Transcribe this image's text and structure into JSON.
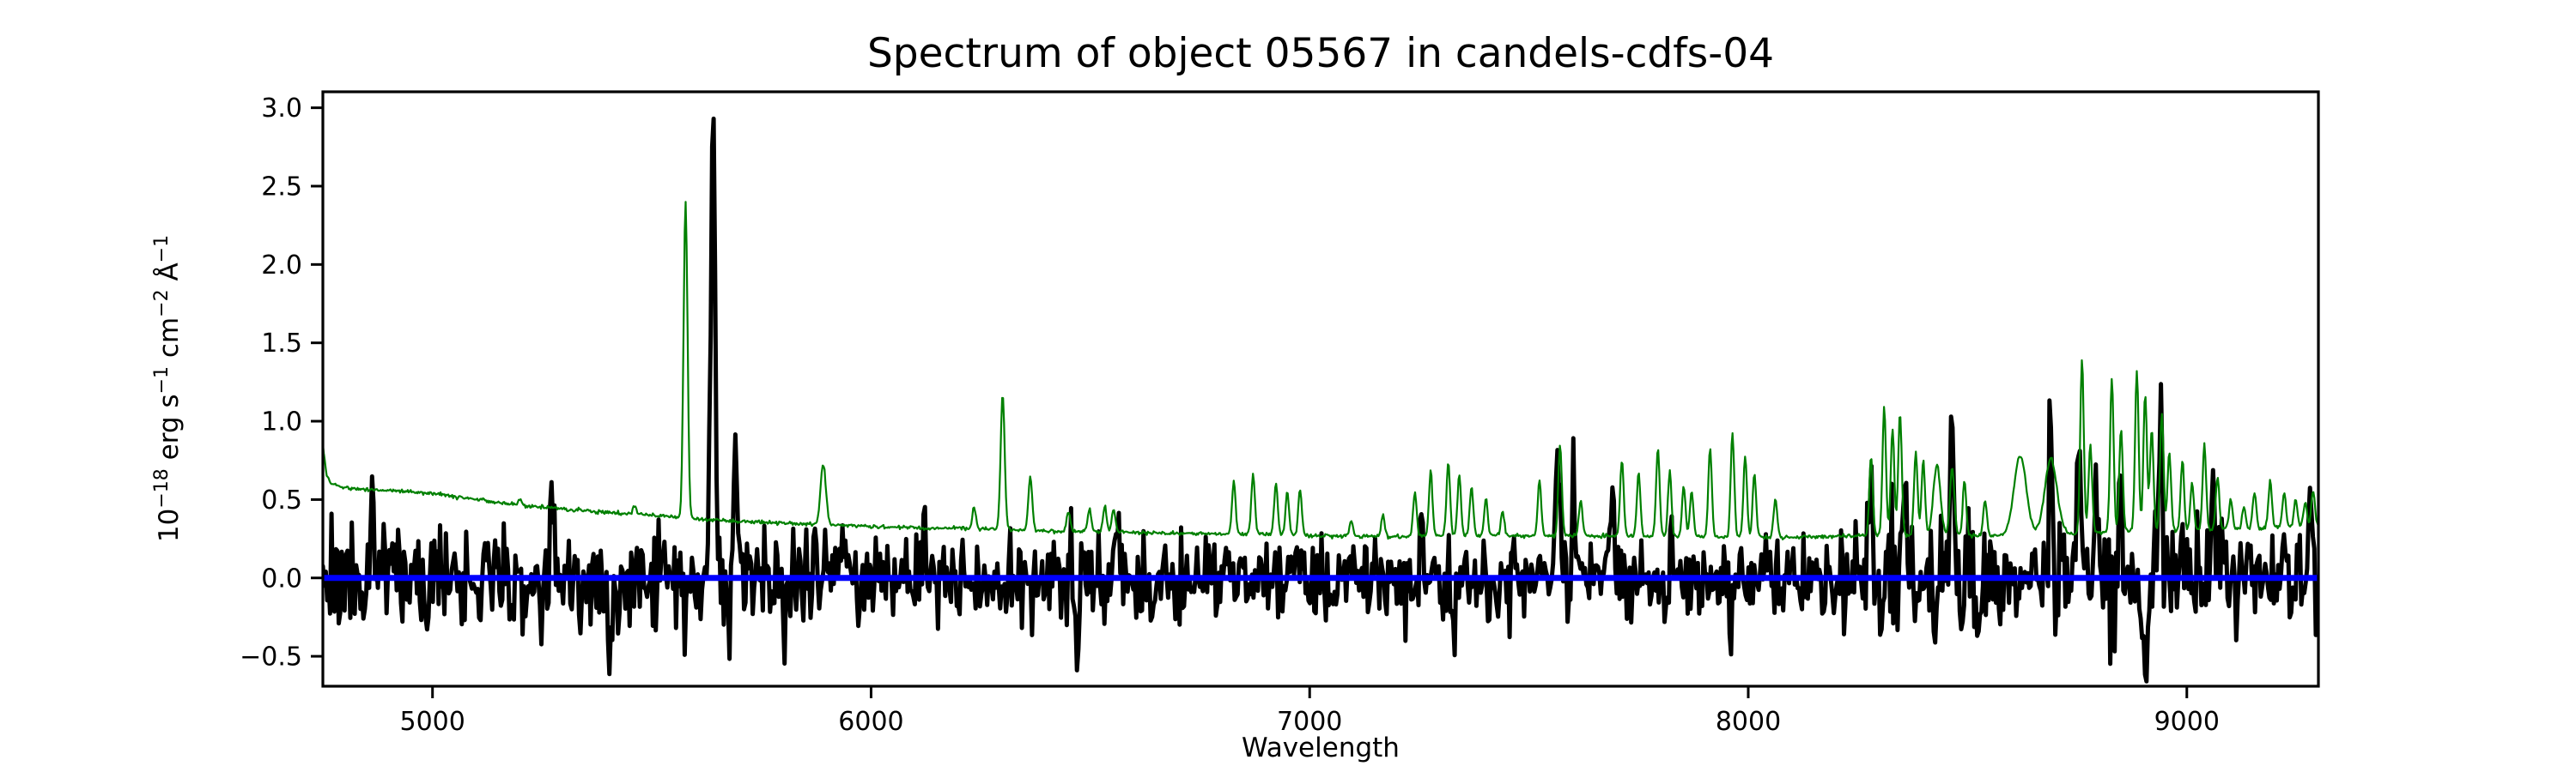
{
  "figure": {
    "background": "#ffffff"
  },
  "chart_data": {
    "type": "line",
    "title": "Spectrum of object 05567 in candels-cdfs-04",
    "xlabel": "Wavelength",
    "ylabel": "10⁻¹⁸ erg s⁻¹ cm⁻² Å⁻¹",
    "xlim": [
      4750,
      9300
    ],
    "ylim": [
      -0.691,
      3.102
    ],
    "xticks": [
      5000,
      6000,
      7000,
      8000,
      9000
    ],
    "yticks": [
      -0.5,
      0.0,
      0.5,
      1.0,
      1.5,
      2.0,
      2.5,
      3.0
    ],
    "grid": false,
    "legend": null,
    "axes_color": "#000000",
    "series": [
      {
        "name": "object-flux-spectrum",
        "color": "#000000",
        "linewidth": 5,
        "sample_step_angstrom": 3.3,
        "noise_seed": 20,
        "noise_sigma_anchors": [
          [
            4750,
            0.16
          ],
          [
            5200,
            0.155
          ],
          [
            5600,
            0.15
          ],
          [
            6000,
            0.14
          ],
          [
            6400,
            0.13
          ],
          [
            6800,
            0.115
          ],
          [
            7100,
            0.11
          ],
          [
            7300,
            0.135
          ],
          [
            7600,
            0.14
          ],
          [
            7900,
            0.13
          ],
          [
            8150,
            0.125
          ],
          [
            8300,
            0.185
          ],
          [
            8500,
            0.17
          ],
          [
            8650,
            0.15
          ],
          [
            8800,
            0.2
          ],
          [
            9000,
            0.18
          ],
          [
            9150,
            0.14
          ],
          [
            9300,
            0.15
          ]
        ],
        "features": [
          [
            4862,
            0.48,
            4
          ],
          [
            5272,
            0.52,
            4
          ],
          [
            5640,
            2.93,
            5
          ],
          [
            5690,
            0.85,
            4
          ],
          [
            5940,
            0.58,
            4
          ],
          [
            6120,
            0.45,
            4
          ],
          [
            6560,
            0.5,
            4
          ],
          [
            7255,
            0.55,
            4
          ],
          [
            7565,
            0.7,
            5
          ],
          [
            7602,
            0.58,
            4
          ],
          [
            7690,
            0.5,
            4
          ],
          [
            8277,
            0.6,
            5
          ],
          [
            8357,
            0.64,
            5
          ],
          [
            8465,
            0.86,
            5
          ],
          [
            8690,
            0.9,
            5
          ],
          [
            8755,
            0.95,
            4.5
          ],
          [
            8795,
            0.7,
            4
          ],
          [
            8848,
            0.8,
            4
          ],
          [
            8940,
            0.82,
            4
          ],
          [
            9060,
            0.6,
            4
          ],
          [
            9280,
            0.5,
            4
          ],
          [
            5405,
            -0.42,
            5
          ],
          [
            6470,
            -0.48,
            4
          ],
          [
            6640,
            -0.4,
            4
          ],
          [
            7050,
            -0.38,
            4
          ],
          [
            7330,
            -0.42,
            4
          ],
          [
            8520,
            -0.42,
            4
          ],
          [
            8905,
            -0.6,
            5
          ]
        ]
      },
      {
        "name": "noise-sky-spectrum",
        "color": "#008000",
        "linewidth": 2.2,
        "sample_step_angstrom": 2.2,
        "noise_seed": 5,
        "jitter_sigma": 0.006,
        "continuum_anchors": [
          [
            4750,
            0.85
          ],
          [
            4758,
            0.66
          ],
          [
            4770,
            0.6
          ],
          [
            4800,
            0.575
          ],
          [
            4850,
            0.565
          ],
          [
            4900,
            0.56
          ],
          [
            4950,
            0.55
          ],
          [
            5000,
            0.54
          ],
          [
            5100,
            0.5
          ],
          [
            5200,
            0.465
          ],
          [
            5300,
            0.44
          ],
          [
            5400,
            0.42
          ],
          [
            5500,
            0.4
          ],
          [
            5600,
            0.375
          ],
          [
            5700,
            0.36
          ],
          [
            5800,
            0.35
          ],
          [
            5900,
            0.34
          ],
          [
            6000,
            0.33
          ],
          [
            6100,
            0.32
          ],
          [
            6200,
            0.315
          ],
          [
            6300,
            0.31
          ],
          [
            6400,
            0.3
          ],
          [
            6500,
            0.295
          ],
          [
            6600,
            0.29
          ],
          [
            6700,
            0.285
          ],
          [
            6800,
            0.28
          ],
          [
            6900,
            0.28
          ],
          [
            7000,
            0.27
          ],
          [
            7100,
            0.265
          ],
          [
            7200,
            0.265
          ],
          [
            7300,
            0.27
          ],
          [
            7400,
            0.27
          ],
          [
            7500,
            0.27
          ],
          [
            7600,
            0.27
          ],
          [
            7700,
            0.27
          ],
          [
            7800,
            0.265
          ],
          [
            7900,
            0.26
          ],
          [
            8000,
            0.26
          ],
          [
            8100,
            0.26
          ],
          [
            8200,
            0.265
          ],
          [
            8300,
            0.27
          ],
          [
            8400,
            0.275
          ],
          [
            8500,
            0.27
          ],
          [
            8600,
            0.27
          ],
          [
            8700,
            0.275
          ],
          [
            8800,
            0.29
          ],
          [
            8900,
            0.3
          ],
          [
            9000,
            0.3
          ],
          [
            9100,
            0.31
          ],
          [
            9200,
            0.32
          ],
          [
            9300,
            0.33
          ]
        ],
        "emission_lines": [
          [
            5199,
            0.5,
            4
          ],
          [
            5461,
            0.46,
            4
          ],
          [
            5577,
            2.4,
            4.5
          ],
          [
            5891,
            0.73,
            6
          ],
          [
            6235,
            0.45,
            4
          ],
          [
            6300,
            1.18,
            4.5
          ],
          [
            6363,
            0.64,
            4.5
          ],
          [
            6450,
            0.42,
            4
          ],
          [
            6498,
            0.44,
            4
          ],
          [
            6533,
            0.46,
            4
          ],
          [
            6553,
            0.44,
            4
          ],
          [
            6827,
            0.62,
            4
          ],
          [
            6871,
            0.66,
            4
          ],
          [
            6923,
            0.61,
            4
          ],
          [
            6949,
            0.55,
            4
          ],
          [
            6978,
            0.56,
            4
          ],
          [
            7095,
            0.36,
            4
          ],
          [
            7167,
            0.4,
            4
          ],
          [
            7240,
            0.55,
            4
          ],
          [
            7276,
            0.68,
            4
          ],
          [
            7316,
            0.74,
            4
          ],
          [
            7341,
            0.66,
            4
          ],
          [
            7369,
            0.58,
            4
          ],
          [
            7402,
            0.5,
            4
          ],
          [
            7440,
            0.42,
            4
          ],
          [
            7524,
            0.62,
            4
          ],
          [
            7571,
            0.84,
            4
          ],
          [
            7618,
            0.5,
            4
          ],
          [
            7712,
            0.76,
            4
          ],
          [
            7750,
            0.68,
            4
          ],
          [
            7794,
            0.83,
            4
          ],
          [
            7821,
            0.68,
            4
          ],
          [
            7853,
            0.59,
            4
          ],
          [
            7871,
            0.55,
            4
          ],
          [
            7913,
            0.83,
            4
          ],
          [
            7964,
            0.93,
            4
          ],
          [
            7993,
            0.78,
            4
          ],
          [
            8014,
            0.66,
            4
          ],
          [
            8062,
            0.5,
            4
          ],
          [
            8280,
            0.78,
            4
          ],
          [
            8310,
            1.08,
            4
          ],
          [
            8329,
            0.95,
            4
          ],
          [
            8346,
            1.05,
            4
          ],
          [
            8382,
            0.8,
            4
          ],
          [
            8399,
            0.75,
            4
          ],
          [
            8430,
            0.72,
            8
          ],
          [
            8465,
            0.7,
            5
          ],
          [
            8493,
            0.62,
            4
          ],
          [
            8540,
            0.5,
            4
          ],
          [
            8620,
            0.78,
            14
          ],
          [
            8690,
            0.76,
            14
          ],
          [
            8761,
            1.4,
            4
          ],
          [
            8780,
            0.85,
            4
          ],
          [
            8829,
            1.28,
            4
          ],
          [
            8850,
            0.95,
            4
          ],
          [
            8886,
            1.32,
            4
          ],
          [
            8905,
            1.18,
            4
          ],
          [
            8920,
            0.95,
            4
          ],
          [
            8943,
            1.05,
            4
          ],
          [
            8960,
            0.8,
            4
          ],
          [
            8990,
            0.75,
            4
          ],
          [
            9012,
            0.6,
            4
          ],
          [
            9040,
            0.85,
            4
          ],
          [
            9070,
            0.65,
            4
          ],
          [
            9100,
            0.5,
            4
          ],
          [
            9130,
            0.45,
            4
          ],
          [
            9154,
            0.55,
            4
          ],
          [
            9190,
            0.62,
            4
          ],
          [
            9222,
            0.55,
            4
          ],
          [
            9248,
            0.5,
            4
          ],
          [
            9270,
            0.48,
            4
          ],
          [
            9288,
            0.55,
            4
          ]
        ]
      },
      {
        "name": "zero-line",
        "color": "#0000ff",
        "linewidth": 7,
        "y": 0.0
      }
    ]
  }
}
